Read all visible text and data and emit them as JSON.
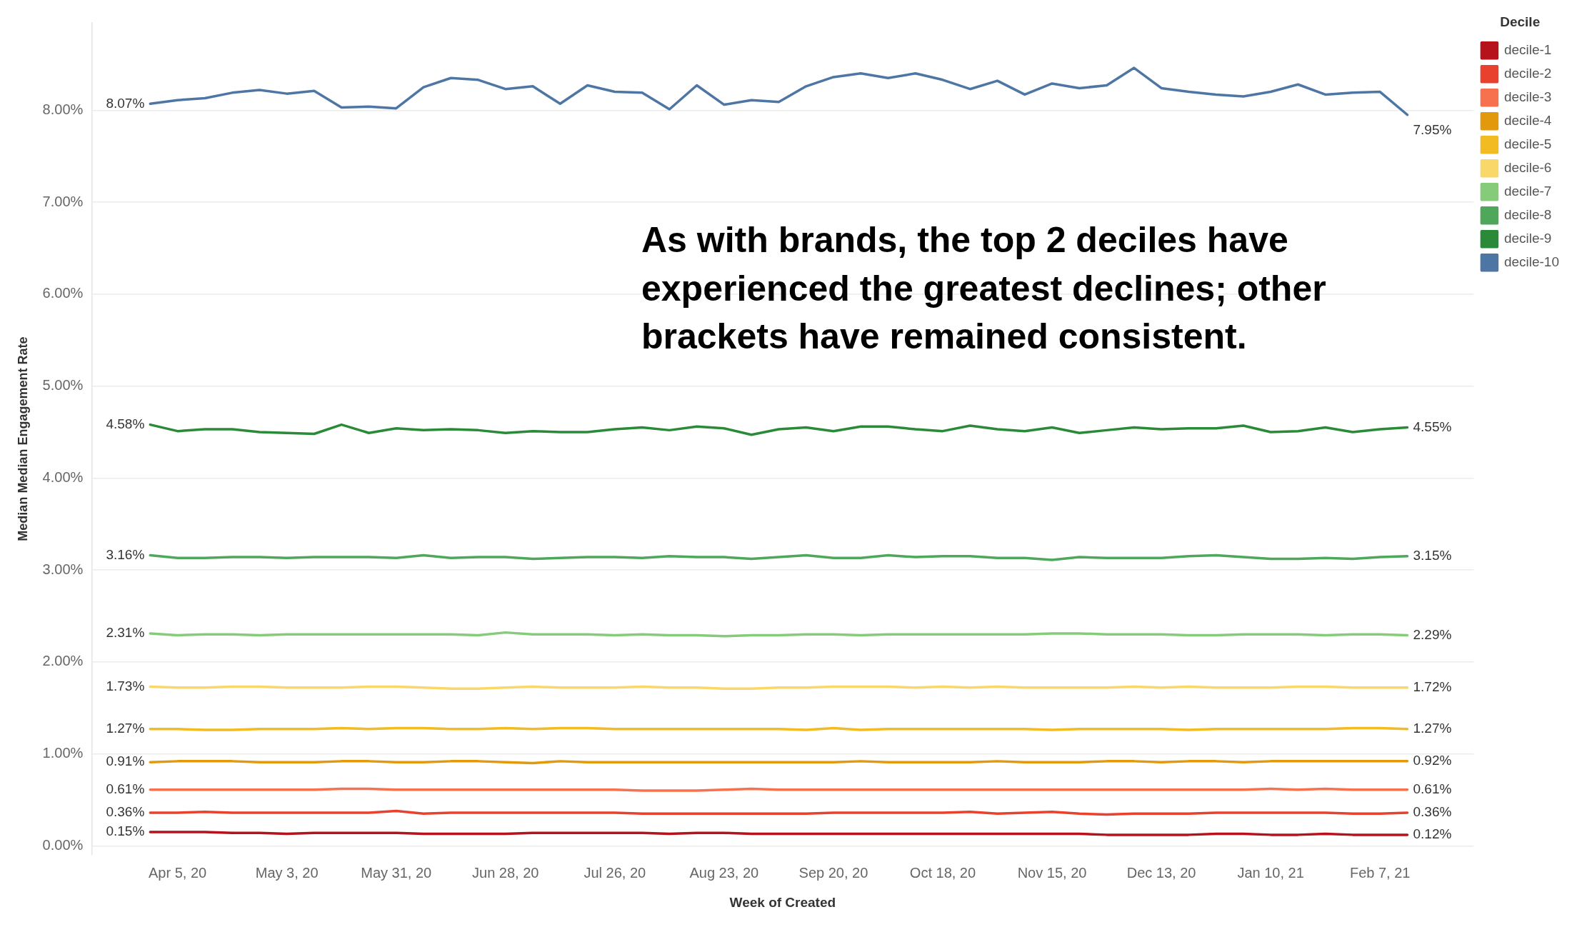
{
  "chart_data": {
    "type": "line",
    "xlabel": "Week of Created",
    "ylabel": "Median Median Engagement Rate",
    "legend_title": "Decile",
    "annotations": [
      "As with brands, the top 2 deciles have experienced the greatest declines; other brackets have remained consistent."
    ],
    "x": [
      "2020-03-29",
      "2020-04-05",
      "2020-04-12",
      "2020-04-19",
      "2020-04-26",
      "2020-05-03",
      "2020-05-10",
      "2020-05-17",
      "2020-05-24",
      "2020-05-31",
      "2020-06-07",
      "2020-06-14",
      "2020-06-21",
      "2020-06-28",
      "2020-07-05",
      "2020-07-12",
      "2020-07-19",
      "2020-07-26",
      "2020-08-02",
      "2020-08-09",
      "2020-08-16",
      "2020-08-23",
      "2020-08-30",
      "2020-09-06",
      "2020-09-13",
      "2020-09-20",
      "2020-09-27",
      "2020-10-04",
      "2020-10-11",
      "2020-10-18",
      "2020-10-25",
      "2020-11-01",
      "2020-11-08",
      "2020-11-15",
      "2020-11-22",
      "2020-11-29",
      "2020-12-06",
      "2020-12-13",
      "2020-12-20",
      "2020-12-27",
      "2021-01-03",
      "2021-01-10",
      "2021-01-17",
      "2021-01-24",
      "2021-01-31",
      "2021-02-07",
      "2021-02-14"
    ],
    "xlim": [
      "2020-03-14",
      "2021-03-03"
    ],
    "xticks": [
      {
        "value": "2020-04-05",
        "label": "Apr 5, 20"
      },
      {
        "value": "2020-05-03",
        "label": "May 3, 20"
      },
      {
        "value": "2020-05-31",
        "label": "May 31, 20"
      },
      {
        "value": "2020-06-28",
        "label": "Jun 28, 20"
      },
      {
        "value": "2020-07-26",
        "label": "Jul 26, 20"
      },
      {
        "value": "2020-08-23",
        "label": "Aug 23, 20"
      },
      {
        "value": "2020-09-20",
        "label": "Sep 20, 20"
      },
      {
        "value": "2020-10-18",
        "label": "Oct 18, 20"
      },
      {
        "value": "2020-11-15",
        "label": "Nov 15, 20"
      },
      {
        "value": "2020-12-13",
        "label": "Dec 13, 20"
      },
      {
        "value": "2021-01-10",
        "label": "Jan 10, 21"
      },
      {
        "value": "2021-02-07",
        "label": "Feb 7, 21"
      }
    ],
    "ylim": [
      -0.1,
      8.95
    ],
    "yticks": [
      {
        "value": 0,
        "label": "0.00%"
      },
      {
        "value": 1,
        "label": "1.00%"
      },
      {
        "value": 2,
        "label": "2.00%"
      },
      {
        "value": 3,
        "label": "3.00%"
      },
      {
        "value": 4,
        "label": "4.00%"
      },
      {
        "value": 5,
        "label": "5.00%"
      },
      {
        "value": 6,
        "label": "6.00%"
      },
      {
        "value": 7,
        "label": "7.00%"
      },
      {
        "value": 8,
        "label": "8.00%"
      }
    ],
    "grid": "y",
    "legend": "top right",
    "marker": "none",
    "line_style": "solid",
    "series": [
      {
        "name": "decile-1",
        "color": "#b5121b",
        "values": [
          0.15,
          0.15,
          0.15,
          0.14,
          0.14,
          0.13,
          0.14,
          0.14,
          0.14,
          0.14,
          0.13,
          0.13,
          0.13,
          0.13,
          0.14,
          0.14,
          0.14,
          0.14,
          0.14,
          0.13,
          0.14,
          0.14,
          0.13,
          0.13,
          0.13,
          0.13,
          0.13,
          0.13,
          0.13,
          0.13,
          0.13,
          0.13,
          0.13,
          0.13,
          0.13,
          0.12,
          0.12,
          0.12,
          0.12,
          0.13,
          0.13,
          0.12,
          0.12,
          0.13,
          0.12,
          0.12,
          0.12
        ],
        "value_labels": [
          "0.15%",
          null,
          null,
          null,
          null,
          null,
          null,
          null,
          null,
          null,
          null,
          null,
          null,
          null,
          null,
          null,
          null,
          null,
          null,
          null,
          null,
          null,
          null,
          null,
          null,
          null,
          null,
          null,
          null,
          null,
          null,
          null,
          null,
          null,
          null,
          null,
          null,
          null,
          null,
          null,
          null,
          null,
          null,
          null,
          null,
          null,
          "0.12%"
        ]
      },
      {
        "name": "decile-2",
        "color": "#e8412e",
        "values": [
          0.36,
          0.36,
          0.37,
          0.36,
          0.36,
          0.36,
          0.36,
          0.36,
          0.36,
          0.38,
          0.35,
          0.36,
          0.36,
          0.36,
          0.36,
          0.36,
          0.36,
          0.36,
          0.35,
          0.35,
          0.35,
          0.35,
          0.35,
          0.35,
          0.35,
          0.36,
          0.36,
          0.36,
          0.36,
          0.36,
          0.37,
          0.35,
          0.36,
          0.37,
          0.35,
          0.34,
          0.35,
          0.35,
          0.35,
          0.36,
          0.36,
          0.36,
          0.36,
          0.36,
          0.35,
          0.35,
          0.36
        ],
        "value_labels": [
          "0.36%",
          null,
          null,
          null,
          null,
          null,
          null,
          null,
          null,
          null,
          null,
          null,
          null,
          null,
          null,
          null,
          null,
          null,
          null,
          null,
          null,
          null,
          null,
          null,
          null,
          null,
          null,
          null,
          null,
          null,
          null,
          null,
          null,
          null,
          null,
          null,
          null,
          null,
          null,
          null,
          null,
          null,
          null,
          null,
          null,
          null,
          "0.36%"
        ]
      },
      {
        "name": "decile-3",
        "color": "#f7714f",
        "values": [
          0.61,
          0.61,
          0.61,
          0.61,
          0.61,
          0.61,
          0.61,
          0.62,
          0.62,
          0.61,
          0.61,
          0.61,
          0.61,
          0.61,
          0.61,
          0.61,
          0.61,
          0.61,
          0.6,
          0.6,
          0.6,
          0.61,
          0.62,
          0.61,
          0.61,
          0.61,
          0.61,
          0.61,
          0.61,
          0.61,
          0.61,
          0.61,
          0.61,
          0.61,
          0.61,
          0.61,
          0.61,
          0.61,
          0.61,
          0.61,
          0.61,
          0.62,
          0.61,
          0.62,
          0.61,
          0.61,
          0.61
        ],
        "value_labels": [
          "0.61%",
          null,
          null,
          null,
          null,
          null,
          null,
          null,
          null,
          null,
          null,
          null,
          null,
          null,
          null,
          null,
          null,
          null,
          null,
          null,
          null,
          null,
          null,
          null,
          null,
          null,
          null,
          null,
          null,
          null,
          null,
          null,
          null,
          null,
          null,
          null,
          null,
          null,
          null,
          null,
          null,
          null,
          null,
          null,
          null,
          null,
          "0.61%"
        ]
      },
      {
        "name": "decile-4",
        "color": "#e29a0c",
        "values": [
          0.91,
          0.92,
          0.92,
          0.92,
          0.91,
          0.91,
          0.91,
          0.92,
          0.92,
          0.91,
          0.91,
          0.92,
          0.92,
          0.91,
          0.9,
          0.92,
          0.91,
          0.91,
          0.91,
          0.91,
          0.91,
          0.91,
          0.91,
          0.91,
          0.91,
          0.91,
          0.92,
          0.91,
          0.91,
          0.91,
          0.91,
          0.92,
          0.91,
          0.91,
          0.91,
          0.92,
          0.92,
          0.91,
          0.92,
          0.92,
          0.91,
          0.92,
          0.92,
          0.92,
          0.92,
          0.92,
          0.92
        ],
        "value_labels": [
          "0.91%",
          null,
          null,
          null,
          null,
          null,
          null,
          null,
          null,
          null,
          null,
          null,
          null,
          null,
          null,
          null,
          null,
          null,
          null,
          null,
          null,
          null,
          null,
          null,
          null,
          null,
          null,
          null,
          null,
          null,
          null,
          null,
          null,
          null,
          null,
          null,
          null,
          null,
          null,
          null,
          null,
          null,
          null,
          null,
          null,
          null,
          "0.92%"
        ]
      },
      {
        "name": "decile-5",
        "color": "#f2bb22",
        "values": [
          1.27,
          1.27,
          1.26,
          1.26,
          1.27,
          1.27,
          1.27,
          1.28,
          1.27,
          1.28,
          1.28,
          1.27,
          1.27,
          1.28,
          1.27,
          1.28,
          1.28,
          1.27,
          1.27,
          1.27,
          1.27,
          1.27,
          1.27,
          1.27,
          1.26,
          1.28,
          1.26,
          1.27,
          1.27,
          1.27,
          1.27,
          1.27,
          1.27,
          1.26,
          1.27,
          1.27,
          1.27,
          1.27,
          1.26,
          1.27,
          1.27,
          1.27,
          1.27,
          1.27,
          1.28,
          1.28,
          1.27
        ],
        "value_labels": [
          "1.27%",
          null,
          null,
          null,
          null,
          null,
          null,
          null,
          null,
          null,
          null,
          null,
          null,
          null,
          null,
          null,
          null,
          null,
          null,
          null,
          null,
          null,
          null,
          null,
          null,
          null,
          null,
          null,
          null,
          null,
          null,
          null,
          null,
          null,
          null,
          null,
          null,
          null,
          null,
          null,
          null,
          null,
          null,
          null,
          null,
          null,
          "1.27%"
        ]
      },
      {
        "name": "decile-6",
        "color": "#f9d869",
        "values": [
          1.73,
          1.72,
          1.72,
          1.73,
          1.73,
          1.72,
          1.72,
          1.72,
          1.73,
          1.73,
          1.72,
          1.71,
          1.71,
          1.72,
          1.73,
          1.72,
          1.72,
          1.72,
          1.73,
          1.72,
          1.72,
          1.71,
          1.71,
          1.72,
          1.72,
          1.73,
          1.73,
          1.73,
          1.72,
          1.73,
          1.72,
          1.73,
          1.72,
          1.72,
          1.72,
          1.72,
          1.73,
          1.72,
          1.73,
          1.72,
          1.72,
          1.72,
          1.73,
          1.73,
          1.72,
          1.72,
          1.72
        ],
        "value_labels": [
          "1.73%",
          null,
          null,
          null,
          null,
          null,
          null,
          null,
          null,
          null,
          null,
          null,
          null,
          null,
          null,
          null,
          null,
          null,
          null,
          null,
          null,
          null,
          null,
          null,
          null,
          null,
          null,
          null,
          null,
          null,
          null,
          null,
          null,
          null,
          null,
          null,
          null,
          null,
          null,
          null,
          null,
          null,
          null,
          null,
          null,
          null,
          "1.72%"
        ]
      },
      {
        "name": "decile-7",
        "color": "#86cb7a",
        "values": [
          2.31,
          2.29,
          2.3,
          2.3,
          2.29,
          2.3,
          2.3,
          2.3,
          2.3,
          2.3,
          2.3,
          2.3,
          2.29,
          2.32,
          2.3,
          2.3,
          2.3,
          2.29,
          2.3,
          2.29,
          2.29,
          2.28,
          2.29,
          2.29,
          2.3,
          2.3,
          2.29,
          2.3,
          2.3,
          2.3,
          2.3,
          2.3,
          2.3,
          2.31,
          2.31,
          2.3,
          2.3,
          2.3,
          2.29,
          2.29,
          2.3,
          2.3,
          2.3,
          2.29,
          2.3,
          2.3,
          2.29
        ],
        "value_labels": [
          "2.31%",
          null,
          null,
          null,
          null,
          null,
          null,
          null,
          null,
          null,
          null,
          null,
          null,
          null,
          null,
          null,
          null,
          null,
          null,
          null,
          null,
          null,
          null,
          null,
          null,
          null,
          null,
          null,
          null,
          null,
          null,
          null,
          null,
          null,
          null,
          null,
          null,
          null,
          null,
          null,
          null,
          null,
          null,
          null,
          null,
          null,
          "2.29%"
        ]
      },
      {
        "name": "decile-8",
        "color": "#4ea75a",
        "values": [
          3.16,
          3.13,
          3.13,
          3.14,
          3.14,
          3.13,
          3.14,
          3.14,
          3.14,
          3.13,
          3.16,
          3.13,
          3.14,
          3.14,
          3.12,
          3.13,
          3.14,
          3.14,
          3.13,
          3.15,
          3.14,
          3.14,
          3.12,
          3.14,
          3.16,
          3.13,
          3.13,
          3.16,
          3.14,
          3.15,
          3.15,
          3.13,
          3.13,
          3.11,
          3.14,
          3.13,
          3.13,
          3.13,
          3.15,
          3.16,
          3.14,
          3.12,
          3.12,
          3.13,
          3.12,
          3.14,
          3.15
        ],
        "value_labels": [
          "3.16%",
          null,
          null,
          null,
          null,
          null,
          null,
          null,
          null,
          null,
          null,
          null,
          null,
          null,
          null,
          null,
          null,
          null,
          null,
          null,
          null,
          null,
          null,
          null,
          null,
          null,
          null,
          null,
          null,
          null,
          null,
          null,
          null,
          null,
          null,
          null,
          null,
          null,
          null,
          null,
          null,
          null,
          null,
          null,
          null,
          null,
          "3.15%"
        ]
      },
      {
        "name": "decile-9",
        "color": "#2a8a38",
        "values": [
          4.58,
          4.51,
          4.53,
          4.53,
          4.5,
          4.49,
          4.48,
          4.58,
          4.49,
          4.54,
          4.52,
          4.53,
          4.52,
          4.49,
          4.51,
          4.5,
          4.5,
          4.53,
          4.55,
          4.52,
          4.56,
          4.54,
          4.47,
          4.53,
          4.55,
          4.51,
          4.56,
          4.56,
          4.53,
          4.51,
          4.57,
          4.53,
          4.51,
          4.55,
          4.49,
          4.52,
          4.55,
          4.53,
          4.54,
          4.54,
          4.57,
          4.5,
          4.51,
          4.55,
          4.5,
          4.53,
          4.55
        ],
        "value_labels": [
          "4.58%",
          null,
          null,
          null,
          null,
          null,
          null,
          null,
          null,
          null,
          null,
          null,
          null,
          null,
          null,
          null,
          null,
          null,
          null,
          null,
          null,
          null,
          null,
          null,
          null,
          null,
          null,
          null,
          null,
          null,
          null,
          null,
          null,
          null,
          null,
          null,
          null,
          null,
          null,
          null,
          null,
          null,
          null,
          null,
          null,
          null,
          "4.55%"
        ]
      },
      {
        "name": "decile-10",
        "color": "#4e76a5",
        "values": [
          8.07,
          8.11,
          8.13,
          8.19,
          8.22,
          8.18,
          8.21,
          8.03,
          8.04,
          8.02,
          8.25,
          8.35,
          8.33,
          8.23,
          8.26,
          8.07,
          8.27,
          8.2,
          8.19,
          8.01,
          8.27,
          8.06,
          8.11,
          8.09,
          8.26,
          8.36,
          8.4,
          8.35,
          8.4,
          8.33,
          8.23,
          8.32,
          8.17,
          8.29,
          8.24,
          8.27,
          8.46,
          8.24,
          8.2,
          8.17,
          8.15,
          8.2,
          8.28,
          8.17,
          8.19,
          8.2,
          7.95
        ],
        "value_labels": [
          "8.07%",
          null,
          null,
          null,
          null,
          null,
          null,
          null,
          null,
          null,
          null,
          null,
          null,
          null,
          null,
          null,
          null,
          null,
          null,
          null,
          null,
          null,
          null,
          null,
          null,
          null,
          null,
          null,
          null,
          null,
          null,
          null,
          null,
          null,
          null,
          null,
          null,
          null,
          null,
          null,
          null,
          null,
          null,
          null,
          null,
          null,
          "7.95%"
        ]
      }
    ]
  }
}
